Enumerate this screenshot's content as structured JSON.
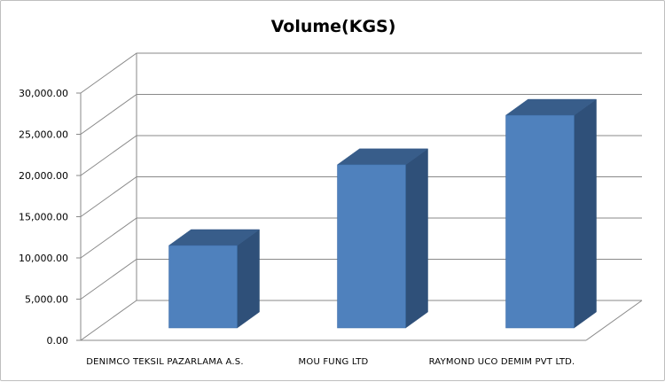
{
  "chart_data": {
    "type": "bar",
    "title": "Volume(KGS)",
    "xlabel": "",
    "ylabel": "",
    "categories": [
      "DENIMCO TEKSIL PAZARLAMA A.S.",
      "MOU FUNG LTD",
      "RAYMOND UCO DEMIM PVT LTD."
    ],
    "values": [
      10000,
      19800,
      25800
    ],
    "ylim": [
      0,
      30000
    ],
    "yticks": [
      "0.00",
      "5,000.00",
      "10,000.00",
      "15,000.00",
      "20,000.00",
      "25,000.00",
      "30,000.00"
    ],
    "grid": true,
    "legend": "none",
    "style": "3d-column",
    "colors": {
      "bar_front": "#4F81BD",
      "bar_side": "#2F5079",
      "bar_top": "#385D8A",
      "gridline": "#898989",
      "frame": "#BFBFBF"
    }
  }
}
